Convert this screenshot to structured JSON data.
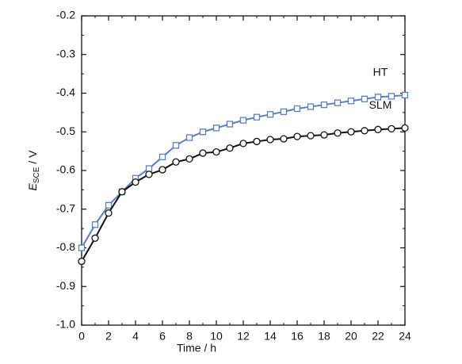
{
  "chart_data": {
    "type": "line",
    "xlabel": "Time / h",
    "ylabel": {
      "symbol": "E",
      "subscript": "SCE",
      "unit": " / V"
    },
    "x": [
      0,
      1,
      2,
      3,
      4,
      5,
      6,
      7,
      8,
      9,
      10,
      11,
      12,
      13,
      14,
      15,
      16,
      17,
      18,
      19,
      20,
      21,
      22,
      23,
      24
    ],
    "series": [
      {
        "name": "HT",
        "color": "#5a7ec6",
        "marker": "square",
        "values": [
          -0.8,
          -0.74,
          -0.69,
          -0.655,
          -0.62,
          -0.595,
          -0.565,
          -0.535,
          -0.515,
          -0.5,
          -0.49,
          -0.48,
          -0.47,
          -0.462,
          -0.455,
          -0.448,
          -0.44,
          -0.435,
          -0.43,
          -0.425,
          -0.42,
          -0.415,
          -0.41,
          -0.408,
          -0.405
        ]
      },
      {
        "name": "SLM",
        "color": "#111111",
        "marker": "circle",
        "values": [
          -0.835,
          -0.775,
          -0.71,
          -0.655,
          -0.63,
          -0.61,
          -0.598,
          -0.578,
          -0.57,
          -0.555,
          -0.552,
          -0.542,
          -0.53,
          -0.525,
          -0.52,
          -0.518,
          -0.512,
          -0.51,
          -0.508,
          -0.503,
          -0.5,
          -0.497,
          -0.494,
          -0.492,
          -0.49
        ]
      }
    ],
    "xlim": [
      0,
      24
    ],
    "xticks": [
      0,
      2,
      4,
      6,
      8,
      10,
      12,
      14,
      16,
      18,
      20,
      22,
      24
    ],
    "ylim": [
      -1.0,
      -0.2
    ],
    "yticks": [
      {
        "value": -1,
        "label": "-1.0"
      },
      -0.9,
      -0.8,
      -0.7,
      -0.6,
      -0.5,
      -0.4,
      -0.3,
      -0.2
    ],
    "grid": false
  }
}
